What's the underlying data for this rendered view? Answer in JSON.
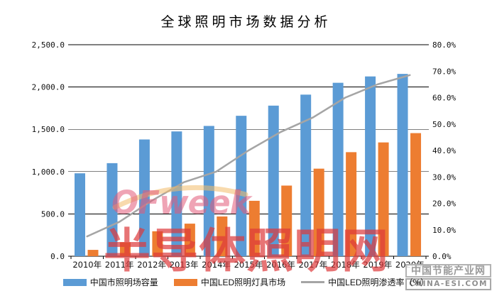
{
  "title": "全球照明市场数据分析",
  "chart_data": {
    "type": "bar",
    "subtype": "bar-line-combo",
    "title": "全球照明市场数据分析",
    "categories": [
      "2010年",
      "2011年",
      "2012年",
      "2013年",
      "2014年",
      "2015年",
      "2016年",
      "2017年",
      "2018年",
      "2019年",
      "2020年"
    ],
    "series": [
      {
        "name": "中国市照明场容量",
        "type": "bar",
        "axis": "left",
        "color": "#5B9BD5",
        "values": [
          980,
          1100,
          1380,
          1475,
          1540,
          1660,
          1780,
          1910,
          2050,
          2125,
          2155
        ]
      },
      {
        "name": "中国LED照明灯具市场",
        "type": "bar",
        "axis": "left",
        "color": "#ED7D31",
        "values": [
          75,
          165,
          295,
          385,
          470,
          655,
          835,
          1035,
          1230,
          1345,
          1455
        ]
      },
      {
        "name": "中国LED照明渗透率（%）",
        "type": "line",
        "axis": "right",
        "color": "#A5A5A5",
        "values": [
          7.5,
          13.0,
          21.0,
          28.0,
          32.0,
          40.0,
          47.0,
          52.5,
          60.0,
          65.0,
          68.5
        ]
      }
    ],
    "left_axis": {
      "min": 0,
      "max": 2500,
      "step": 500,
      "tick_labels": [
        "0.0",
        "500.0",
        "1,000.0",
        "1,500.0",
        "2,000.0",
        "2,500.0"
      ]
    },
    "right_axis": {
      "min": 0,
      "max": 80,
      "step": 10,
      "tick_labels": [
        "0.0%",
        "10.0%",
        "20.0%",
        "30.0%",
        "40.0%",
        "50.0%",
        "60.0%",
        "70.0%",
        "80.0%"
      ]
    },
    "grid": true,
    "legend_position": "bottom"
  },
  "watermarks": {
    "ofweek": "OFweek",
    "banner": "半导体照明网",
    "corner": {
      "line1": "中国节能产业网",
      "line2": "CHINA-ESI.COM"
    }
  }
}
